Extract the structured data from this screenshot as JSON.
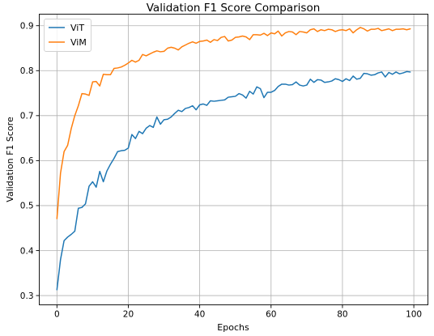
{
  "chart_data": {
    "type": "line",
    "title": "Validation F1 Score Comparison",
    "xlabel": "Epochs",
    "ylabel": "Validation F1 Score",
    "xlim": [
      -4.95,
      103.95
    ],
    "ylim": [
      0.2794,
      0.9256
    ],
    "xticks": [
      0,
      20,
      40,
      60,
      80,
      100
    ],
    "xtick_labels": [
      "0",
      "20",
      "40",
      "60",
      "80",
      "100"
    ],
    "yticks": [
      0.3,
      0.4,
      0.5,
      0.6,
      0.7,
      0.8,
      0.9
    ],
    "ytick_labels": [
      "0.3",
      "0.4",
      "0.5",
      "0.6",
      "0.7",
      "0.8",
      "0.9"
    ],
    "grid": true,
    "legend_position": "upper-left",
    "x": [
      0,
      1,
      2,
      3,
      4,
      5,
      6,
      7,
      8,
      9,
      10,
      11,
      12,
      13,
      14,
      15,
      16,
      17,
      18,
      19,
      20,
      21,
      22,
      23,
      24,
      25,
      26,
      27,
      28,
      29,
      30,
      31,
      32,
      33,
      34,
      35,
      36,
      37,
      38,
      39,
      40,
      41,
      42,
      43,
      44,
      45,
      46,
      47,
      48,
      49,
      50,
      51,
      52,
      53,
      54,
      55,
      56,
      57,
      58,
      59,
      60,
      61,
      62,
      63,
      64,
      65,
      66,
      67,
      68,
      69,
      70,
      71,
      72,
      73,
      74,
      75,
      76,
      77,
      78,
      79,
      80,
      81,
      82,
      83,
      84,
      85,
      86,
      87,
      88,
      89,
      90,
      91,
      92,
      93,
      94,
      95,
      96,
      97,
      98,
      99
    ],
    "series": [
      {
        "name": "ViT",
        "color": "#1f77b4",
        "values": [
          0.313,
          0.38,
          0.422,
          0.43,
          0.436,
          0.443,
          0.494,
          0.496,
          0.504,
          0.543,
          0.553,
          0.541,
          0.576,
          0.553,
          0.577,
          0.592,
          0.605,
          0.62,
          0.622,
          0.623,
          0.628,
          0.658,
          0.649,
          0.665,
          0.66,
          0.672,
          0.678,
          0.674,
          0.697,
          0.681,
          0.691,
          0.692,
          0.697,
          0.705,
          0.712,
          0.709,
          0.716,
          0.718,
          0.722,
          0.713,
          0.724,
          0.726,
          0.723,
          0.733,
          0.732,
          0.733,
          0.734,
          0.735,
          0.741,
          0.742,
          0.743,
          0.749,
          0.746,
          0.739,
          0.754,
          0.748,
          0.764,
          0.76,
          0.74,
          0.752,
          0.752,
          0.756,
          0.765,
          0.77,
          0.77,
          0.768,
          0.769,
          0.775,
          0.768,
          0.766,
          0.768,
          0.781,
          0.774,
          0.78,
          0.779,
          0.774,
          0.775,
          0.777,
          0.782,
          0.78,
          0.776,
          0.782,
          0.778,
          0.788,
          0.781,
          0.783,
          0.794,
          0.793,
          0.79,
          0.791,
          0.795,
          0.797,
          0.786,
          0.796,
          0.792,
          0.797,
          0.793,
          0.795,
          0.798,
          0.797
        ]
      },
      {
        "name": "ViM",
        "color": "#ff7f0e",
        "values": [
          0.471,
          0.572,
          0.62,
          0.634,
          0.671,
          0.7,
          0.722,
          0.749,
          0.748,
          0.745,
          0.775,
          0.776,
          0.766,
          0.792,
          0.791,
          0.791,
          0.805,
          0.806,
          0.808,
          0.812,
          0.817,
          0.823,
          0.819,
          0.823,
          0.836,
          0.833,
          0.837,
          0.841,
          0.844,
          0.842,
          0.843,
          0.85,
          0.852,
          0.85,
          0.846,
          0.853,
          0.857,
          0.861,
          0.864,
          0.861,
          0.865,
          0.866,
          0.868,
          0.863,
          0.869,
          0.867,
          0.874,
          0.876,
          0.866,
          0.868,
          0.874,
          0.875,
          0.877,
          0.875,
          0.869,
          0.88,
          0.88,
          0.879,
          0.883,
          0.878,
          0.884,
          0.882,
          0.888,
          0.877,
          0.884,
          0.887,
          0.886,
          0.88,
          0.887,
          0.886,
          0.884,
          0.891,
          0.893,
          0.887,
          0.891,
          0.889,
          0.892,
          0.891,
          0.887,
          0.89,
          0.891,
          0.889,
          0.893,
          0.884,
          0.891,
          0.896,
          0.893,
          0.888,
          0.892,
          0.892,
          0.894,
          0.889,
          0.891,
          0.893,
          0.889,
          0.892,
          0.892,
          0.893,
          0.891,
          0.893
        ]
      }
    ]
  }
}
